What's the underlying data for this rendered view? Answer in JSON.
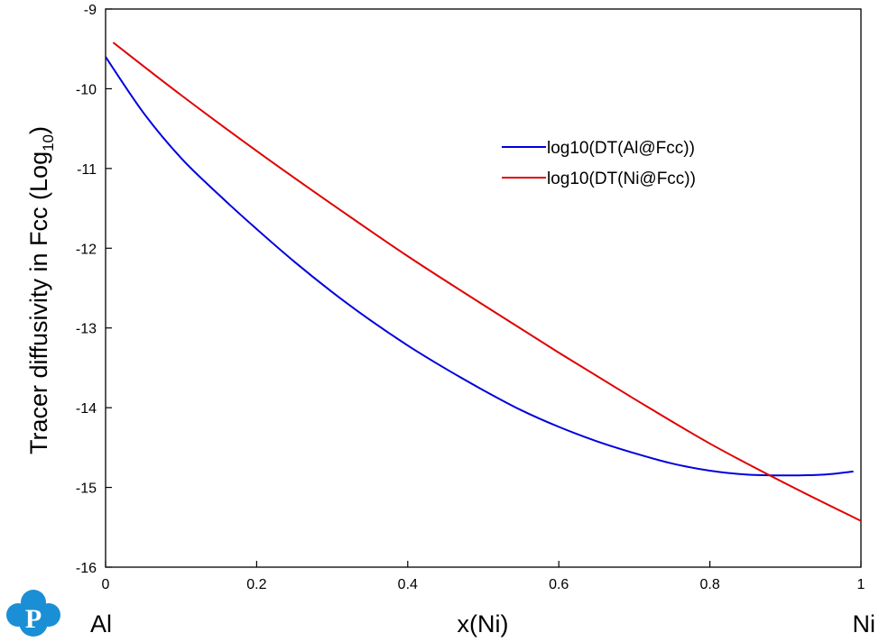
{
  "chart_data": {
    "type": "line",
    "xlabel": "x(Ni)",
    "ylabel": {
      "prefix": "Tracer diffusivity in Fcc (Log",
      "subscript": "10",
      "suffix": ")"
    },
    "xlim": [
      0,
      1
    ],
    "ylim": [
      -16,
      -9
    ],
    "x_ticks": [
      "0",
      "0.2",
      "0.4",
      "0.6",
      "0.8",
      "1"
    ],
    "x_tick_values": [
      0,
      0.2,
      0.4,
      0.6,
      0.8,
      1
    ],
    "y_ticks": [
      "-16",
      "-15",
      "-14",
      "-13",
      "-12",
      "-11",
      "-10",
      "-9"
    ],
    "y_tick_values": [
      -16,
      -15,
      -14,
      -13,
      -12,
      -11,
      -10,
      -9
    ],
    "x_left_label": "Al",
    "x_right_label": "Ni",
    "legend_position": "upper-right",
    "grid": false,
    "series": [
      {
        "name": "log10(DT(Al@Fcc))",
        "color": "#0000dd",
        "x": [
          0,
          0.05,
          0.1,
          0.15,
          0.2,
          0.25,
          0.3,
          0.35,
          0.4,
          0.45,
          0.5,
          0.55,
          0.6,
          0.65,
          0.7,
          0.75,
          0.8,
          0.85,
          0.9,
          0.95,
          0.99
        ],
        "y": [
          -9.6,
          -10.3,
          -10.87,
          -11.33,
          -11.76,
          -12.17,
          -12.55,
          -12.9,
          -13.22,
          -13.51,
          -13.78,
          -14.03,
          -14.24,
          -14.42,
          -14.57,
          -14.7,
          -14.79,
          -14.84,
          -14.85,
          -14.84,
          -14.8
        ]
      },
      {
        "name": "log10(DT(Ni@Fcc))",
        "color": "#e00000",
        "x": [
          0.01,
          0.1,
          0.2,
          0.3,
          0.4,
          0.5,
          0.6,
          0.7,
          0.8,
          0.9,
          1.0
        ],
        "y": [
          -9.42,
          -10.08,
          -10.78,
          -11.45,
          -12.1,
          -12.71,
          -13.31,
          -13.89,
          -14.45,
          -14.95,
          -15.42
        ]
      }
    ]
  }
}
